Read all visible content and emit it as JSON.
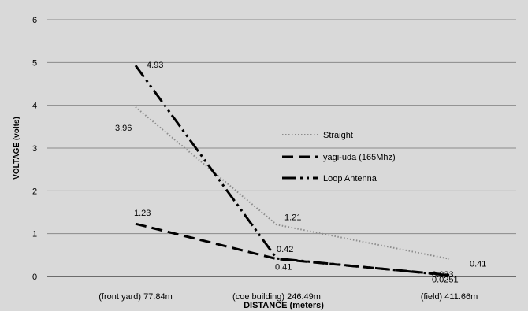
{
  "chart_data": {
    "type": "line",
    "title": "",
    "xlabel": "DISTANCE (meters)",
    "ylabel": "VOLTAGE (volts)",
    "ylim": [
      0,
      6
    ],
    "yticks": [
      "0",
      "1",
      "2",
      "3",
      "4",
      "5",
      "6"
    ],
    "categories": [
      "(front yard) 77.84m",
      "(coe building) 246.49m",
      "(field) 411.66m"
    ],
    "grid": true,
    "legend_position": "center-right",
    "background": "#d9d9d9",
    "series": [
      {
        "name": "Straight",
        "style": "dotted",
        "color": "#8c8c8c",
        "values": [
          3.96,
          1.21,
          0.41
        ],
        "labels": [
          "3.96",
          "1.21",
          "0.41"
        ]
      },
      {
        "name": "yagi-uda (165Mhz)",
        "style": "dashed",
        "color": "#000000",
        "values": [
          1.23,
          0.41,
          0.033
        ],
        "labels": [
          "1.23",
          "0.41",
          "0.033"
        ]
      },
      {
        "name": "Loop Antenna",
        "style": "dash-dot-dot",
        "color": "#000000",
        "values": [
          4.93,
          0.42,
          0.0251
        ],
        "labels": [
          "4.93",
          "0.42",
          "0.0251"
        ]
      }
    ]
  }
}
